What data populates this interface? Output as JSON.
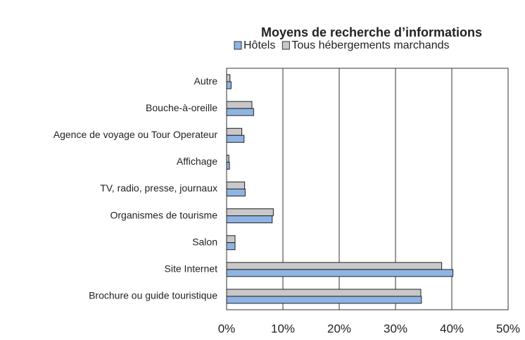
{
  "chart_data": {
    "type": "hbar",
    "title": "Moyens de recherche d’informations",
    "categories": [
      "Autre",
      "Bouche-à-oreille",
      "Agence de voyage ou Tour Operateur",
      "Affichage",
      "TV, radio, presse, journaux",
      "Organismes de tourisme",
      "Salon",
      "Site Internet",
      "Brochure ou guide touristique"
    ],
    "series": [
      {
        "name": "Hôtels",
        "color": "#8eb4e3",
        "values": [
          0.8,
          4.8,
          3.1,
          0.5,
          3.3,
          8.1,
          1.5,
          40.2,
          34.6
        ]
      },
      {
        "name": "Tous hébergements marchands",
        "color": "#c8c8c8",
        "values": [
          0.6,
          4.5,
          2.7,
          0.4,
          3.2,
          8.3,
          1.5,
          38.2,
          34.5
        ]
      }
    ],
    "xlim": [
      0,
      50
    ],
    "xticks": [
      {
        "value": 0,
        "label": "0%"
      },
      {
        "value": 10,
        "label": "10%"
      },
      {
        "value": 20,
        "label": "20%"
      },
      {
        "value": 30,
        "label": "30%"
      },
      {
        "value": 40,
        "label": "40%"
      },
      {
        "value": 50,
        "label": "50%"
      }
    ],
    "grid": true,
    "legend": "top"
  }
}
